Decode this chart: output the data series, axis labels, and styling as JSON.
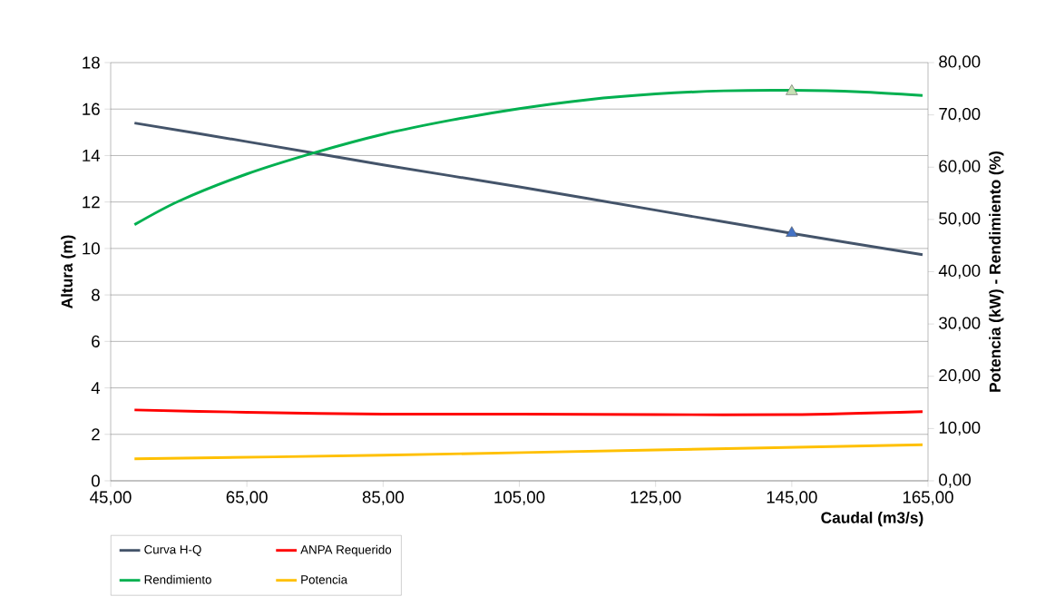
{
  "chart_data": {
    "type": "line",
    "xlabel": "Caudal (m3/s)",
    "ylabel": "Altura (m)",
    "y2label": "Potencia (kW) - Rendimiento (%)",
    "xlim": [
      45,
      165
    ],
    "xticks": [
      {
        "value": 45,
        "label": "45,00"
      },
      {
        "value": 65,
        "label": "65,00"
      },
      {
        "value": 85,
        "label": "85,00"
      },
      {
        "value": 105,
        "label": "105,00"
      },
      {
        "value": 125,
        "label": "125,00"
      },
      {
        "value": 145,
        "label": "145,00"
      },
      {
        "value": 165,
        "label": "165,00"
      }
    ],
    "ylim": [
      0,
      18
    ],
    "yticks": [
      0,
      2,
      4,
      6,
      8,
      10,
      12,
      14,
      16,
      18
    ],
    "y2lim": [
      0,
      80
    ],
    "y2ticks": [
      {
        "value": 0,
        "label": "0,00"
      },
      {
        "value": 10,
        "label": "10,00"
      },
      {
        "value": 20,
        "label": "20,00"
      },
      {
        "value": 30,
        "label": "30,00"
      },
      {
        "value": 40,
        "label": "40,00"
      },
      {
        "value": 50,
        "label": "50,00"
      },
      {
        "value": 60,
        "label": "60,00"
      },
      {
        "value": 70,
        "label": "70,00"
      },
      {
        "value": 80,
        "label": "80,00"
      }
    ],
    "grid": "y",
    "legend": "bottom left",
    "series": [
      {
        "name": "Curva H-Q",
        "color": "#44546a",
        "x": [
          48.5,
          65,
          85,
          105,
          125,
          145,
          164.2
        ],
        "values": [
          15.4,
          14.6,
          13.6,
          12.65,
          11.65,
          10.65,
          9.73
        ]
      },
      {
        "name": "ANPA Requerido",
        "color": "#ff0000",
        "x": [
          48.5,
          65,
          85,
          105,
          125,
          145,
          164.2
        ],
        "values": [
          3.05,
          2.95,
          2.87,
          2.87,
          2.85,
          2.85,
          2.98
        ]
      },
      {
        "name": "Rendimiento",
        "color": "#00b050",
        "axis": "y2",
        "x": [
          48.5,
          55,
          65,
          75,
          85,
          95,
          105,
          115,
          125,
          135,
          145,
          155,
          164.2
        ],
        "values": [
          49,
          53.5,
          58.7,
          62.8,
          66.3,
          69,
          71.2,
          72.9,
          74,
          74.6,
          74.7,
          74.4,
          73.7
        ]
      },
      {
        "name": "Potencia",
        "color": "#ffc000",
        "axis": "y2",
        "x": [
          48.5,
          85,
          125,
          164.2
        ],
        "values": [
          4.2,
          4.9,
          5.9,
          6.9
        ]
      },
      {
        "type": "scatter",
        "marker": "triangle",
        "color": "#4472c4",
        "x": [
          145
        ],
        "values": [
          10.66
        ]
      },
      {
        "type": "scatter",
        "marker": "triangle",
        "color": "#c6e0b4",
        "axis": "y2",
        "x": [
          145
        ],
        "values": [
          74.5
        ]
      }
    ]
  }
}
